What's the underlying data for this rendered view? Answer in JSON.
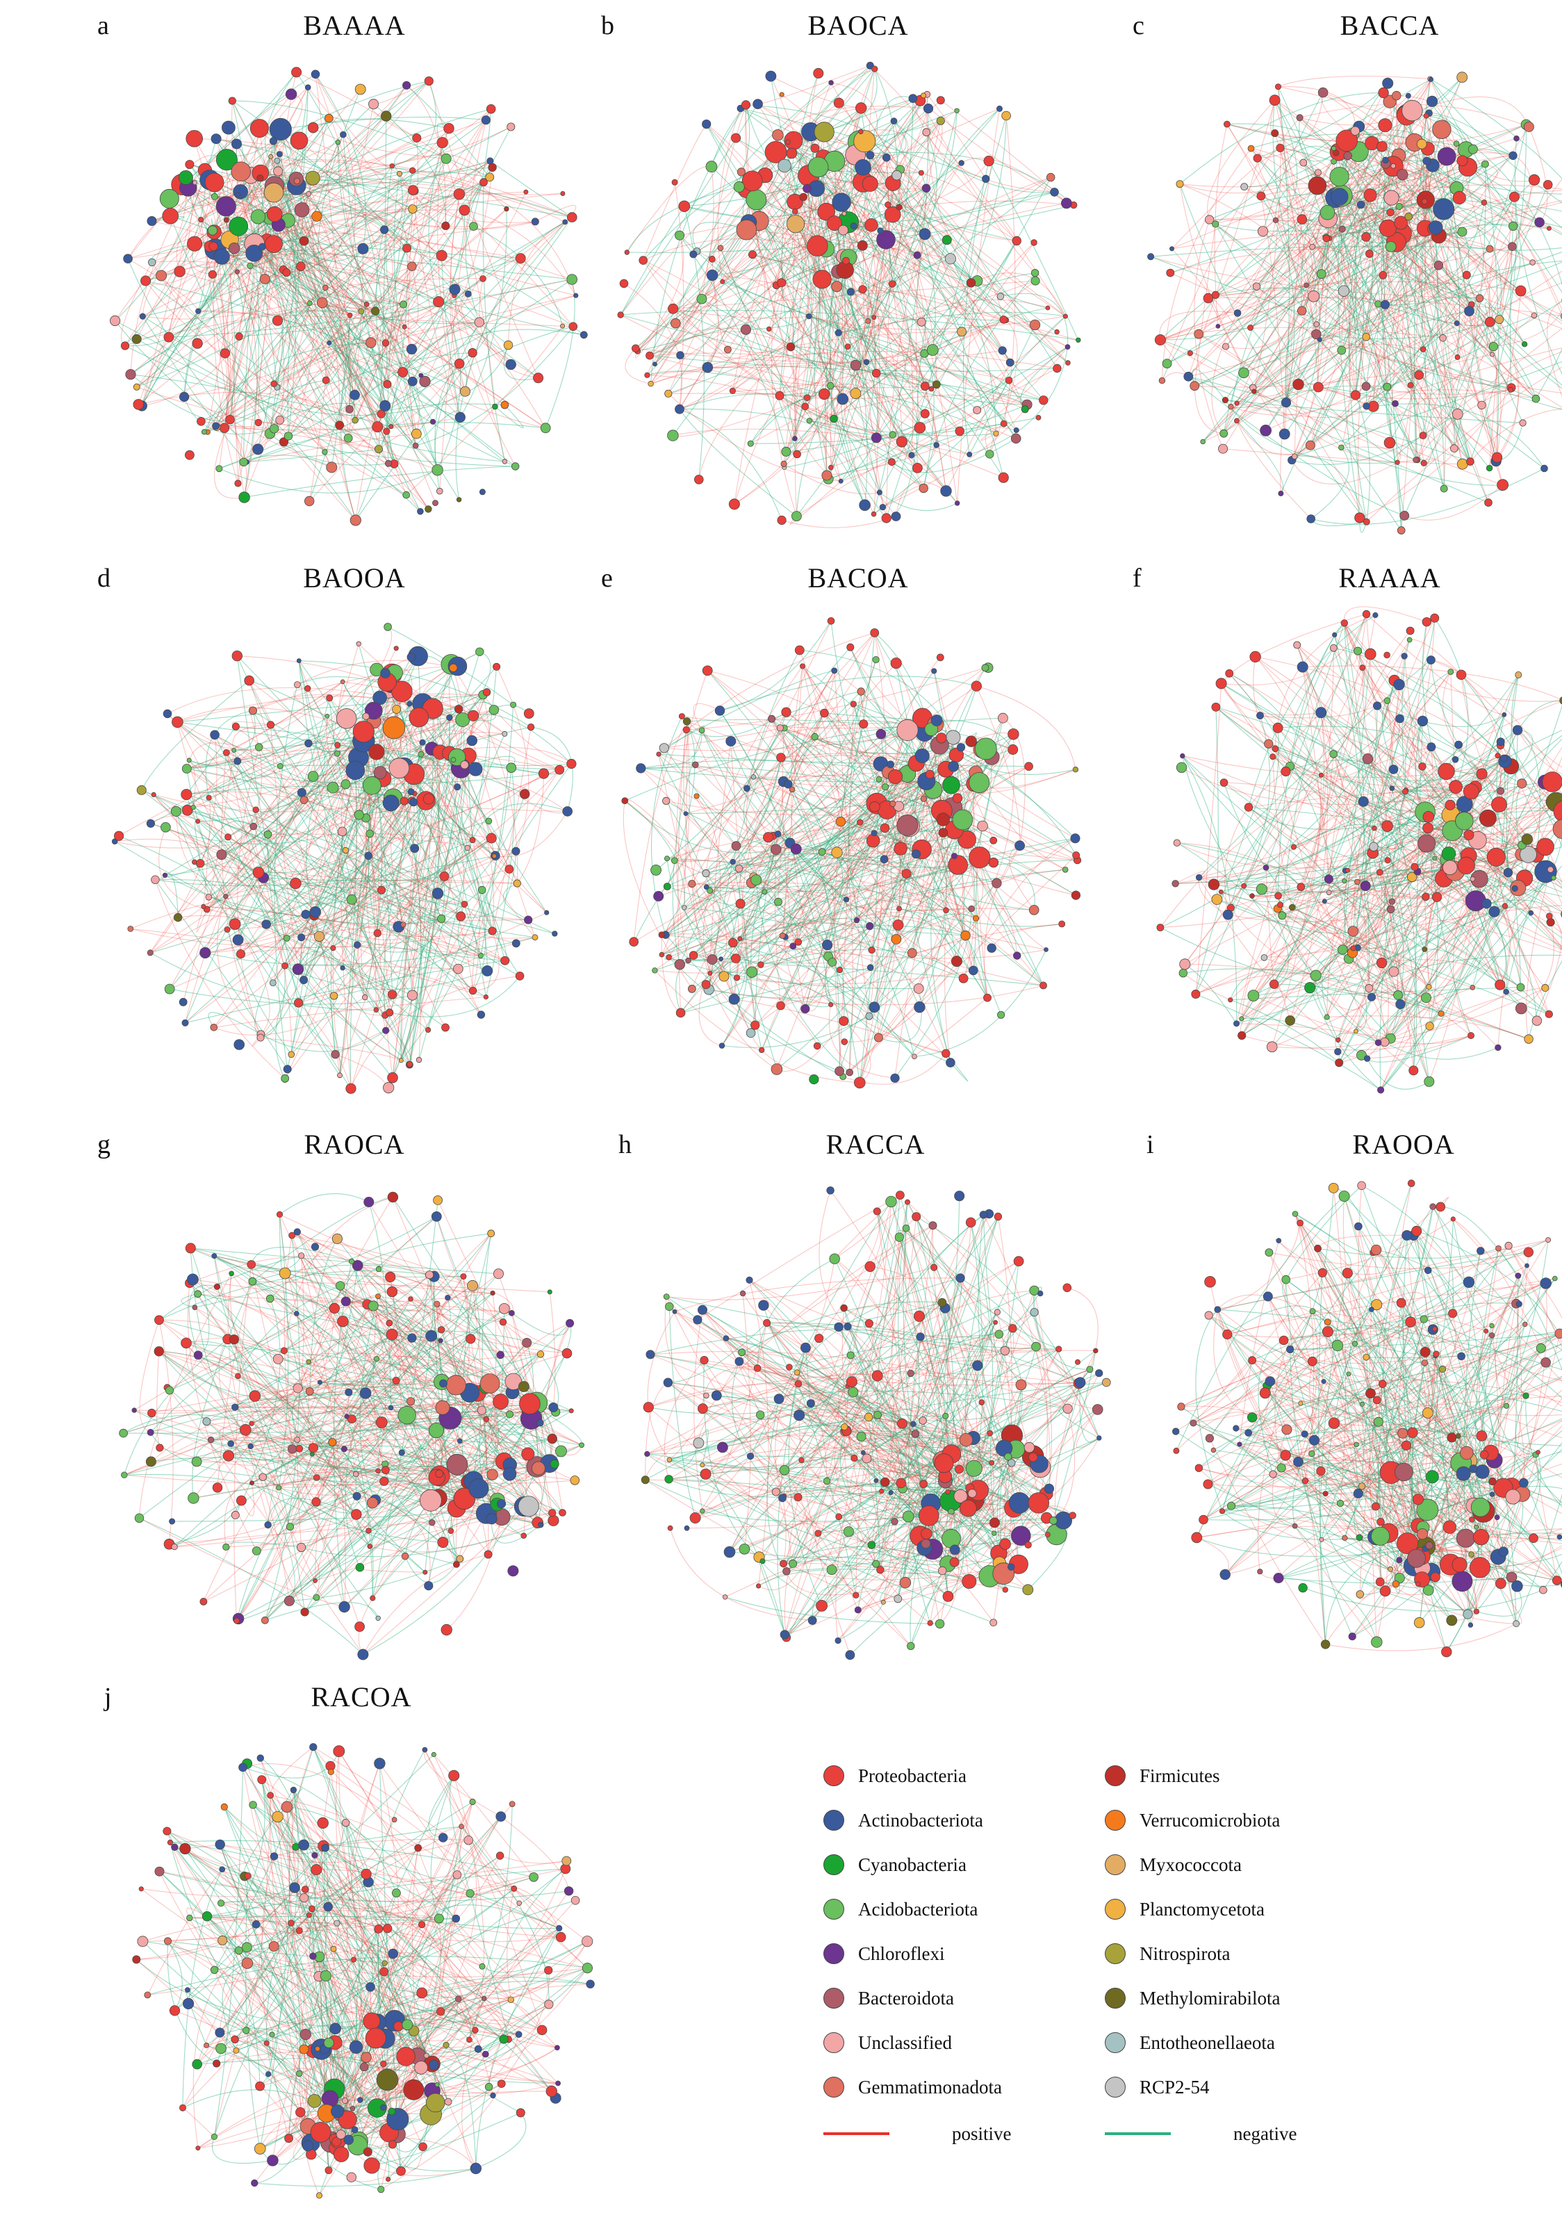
{
  "panels": [
    {
      "letter": "a",
      "title": "BAAAA"
    },
    {
      "letter": "b",
      "title": "BAOCA"
    },
    {
      "letter": "c",
      "title": "BACCA"
    },
    {
      "letter": "d",
      "title": "BAOOA"
    },
    {
      "letter": "e",
      "title": "BACOA"
    },
    {
      "letter": "f",
      "title": "RAAAA"
    },
    {
      "letter": "g",
      "title": "RAOCA"
    },
    {
      "letter": "h",
      "title": "RACCA"
    },
    {
      "letter": "i",
      "title": "RAOOA"
    },
    {
      "letter": "j",
      "title": "RACOA"
    }
  ],
  "legend": {
    "left": [
      {
        "label": "Proteobacteria",
        "color": "#e8403b"
      },
      {
        "label": "Actinobacteriota",
        "color": "#3a5a9c"
      },
      {
        "label": "Cyanobacteria",
        "color": "#1aa532"
      },
      {
        "label": "Acidobacteriota",
        "color": "#6abf5e"
      },
      {
        "label": "Chloroflexi",
        "color": "#6b3590"
      },
      {
        "label": "Bacteroidota",
        "color": "#ad5c68"
      },
      {
        "label": "Unclassified",
        "color": "#f2a6a6"
      },
      {
        "label": "Gemmatimonadota",
        "color": "#e0705f"
      }
    ],
    "right": [
      {
        "label": "Firmicutes",
        "color": "#c0302a"
      },
      {
        "label": "Verrucomicrobiota",
        "color": "#f57a1c"
      },
      {
        "label": "Myxococcota",
        "color": "#e3ac63"
      },
      {
        "label": "Planctomycetota",
        "color": "#f0b042"
      },
      {
        "label": "Nitrospirota",
        "color": "#a7a33a"
      },
      {
        "label": "Methylomirabilota",
        "color": "#6e6a22"
      },
      {
        "label": "Entotheonellaeota",
        "color": "#a5c2c2"
      },
      {
        "label": "RCP2-54",
        "color": "#c4c4c4"
      }
    ],
    "edges": [
      {
        "label": "positive",
        "color": "#e8322c"
      },
      {
        "label": "negative",
        "color": "#2bb07f"
      }
    ]
  }
}
